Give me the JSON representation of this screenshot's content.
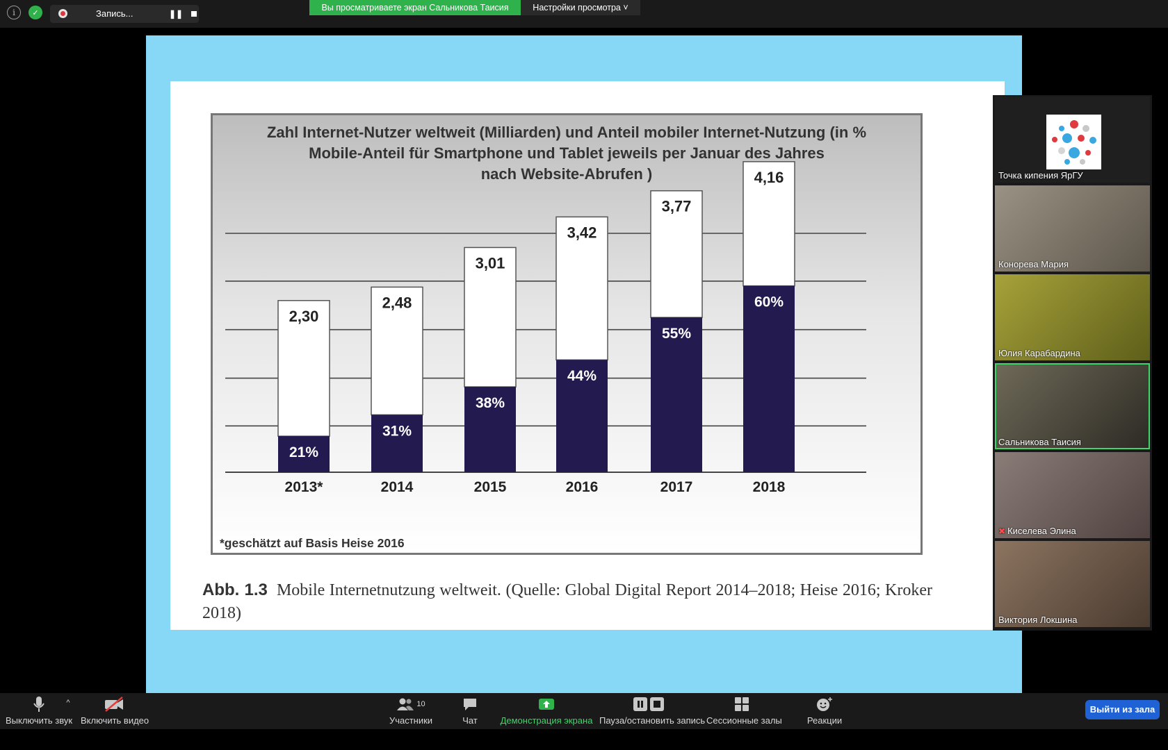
{
  "topbar": {
    "recording_label": "Запись...",
    "viewing_banner": "Вы просматриваете экран Сальникова Таисия",
    "view_options": "Настройки просмотра"
  },
  "slide": {
    "title_lines": [
      "Zahl Internet-Nutzer weltweit (Milliarden)  und Anteil mobiler Internet-Nutzung (in %",
      "Mobile-Anteil für Smartphone und Tablet jeweils per Januar des Jahres",
      "nach Website-Abrufen )"
    ],
    "footnote": "*geschätzt auf Basis Heise 2016",
    "caption_label": "Abb. 1.3",
    "caption_text": "Mobile Internetnutzung weltweit. (Quelle: Global Digital Report 2014–2018; Heise 2016; Kroker 2018)"
  },
  "chart_data": {
    "type": "bar",
    "stacked": true,
    "title": "Zahl Internet-Nutzer weltweit (Milliarden)  und Anteil mobiler Internet-Nutzung (in % Mobile-Anteil für Smartphone und Tablet jeweils per Januar des Jahres nach Website-Abrufen )",
    "categories": [
      "2013*",
      "2014",
      "2015",
      "2016",
      "2017",
      "2018"
    ],
    "totals": [
      2.3,
      2.48,
      3.01,
      3.42,
      3.77,
      4.16
    ],
    "total_labels": [
      "2,30",
      "2,48",
      "3,01",
      "3,42",
      "3,77",
      "4,16"
    ],
    "mobile_share": [
      21,
      31,
      38,
      44,
      55,
      60
    ],
    "mobile_labels": [
      "21%",
      "31%",
      "38%",
      "44%",
      "55%",
      "60%"
    ],
    "ylim": [
      0,
      4.2
    ],
    "grid": true,
    "colors": {
      "mobile": "#231b4f",
      "total": "#ffffff",
      "grid": "#444444"
    }
  },
  "participants": [
    {
      "name": "Точка кипения ЯрГУ",
      "type": "logo"
    },
    {
      "name": "Конорева Мария",
      "bg": "#7d7466"
    },
    {
      "name": "Юлия Карабардина",
      "bg": "#8a8a2e"
    },
    {
      "name": "Сальникова Таисия",
      "bg": "#4a473f",
      "active": true
    },
    {
      "name": "Киселева Элина",
      "bg": "#6b5b57",
      "muted": true
    },
    {
      "name": "Виктория Локшина",
      "bg": "#6e5a4a"
    }
  ],
  "bottombar": {
    "mute": "Выключить звук",
    "video": "Включить видео",
    "participants": "Участники",
    "participants_count": "10",
    "chat": "Чат",
    "share": "Демонстрация экрана",
    "record": "Пауза/остановить запись",
    "rooms": "Сессионные залы",
    "reactions": "Реакции",
    "leave": "Выйти из зала"
  }
}
